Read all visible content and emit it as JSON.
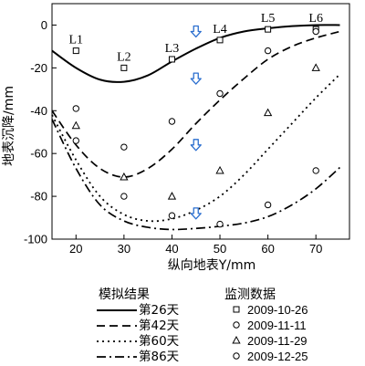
{
  "chart_data": {
    "type": "line",
    "xlabel": "纵向地表Y/mm",
    "ylabel": "地表沉降/mm",
    "xlim": [
      15,
      77
    ],
    "ylim": [
      -100,
      10
    ],
    "xticks": [
      "20",
      "30",
      "40",
      "50",
      "60",
      "70"
    ],
    "yticks": [
      "0",
      "-20",
      "-40",
      "-60",
      "-80",
      "-100"
    ],
    "grid": false,
    "legend_groups": [
      {
        "title": "模拟结果",
        "items": [
          "第26天",
          "第42天",
          "第60天",
          "第86天"
        ]
      },
      {
        "title": "监测数据",
        "items": [
          "2009-10-26",
          "2009-11-11",
          "2009-11-29",
          "2009-12-25"
        ]
      }
    ],
    "stations": [
      {
        "label": "L1",
        "x": 20,
        "y": -12
      },
      {
        "label": "L2",
        "x": 30,
        "y": -20
      },
      {
        "label": "L3",
        "x": 40,
        "y": -16
      },
      {
        "label": "L4",
        "x": 50,
        "y": -7
      },
      {
        "label": "L5",
        "x": 60,
        "y": -2
      },
      {
        "label": "L6",
        "x": 70,
        "y": -2
      }
    ],
    "simulated_series": [
      {
        "name": "第26天",
        "style": "solid",
        "x": [
          15,
          20,
          25,
          30,
          35,
          40,
          45,
          50,
          55,
          60,
          65,
          70,
          75
        ],
        "y": [
          -12,
          -20,
          -25.5,
          -26.5,
          -23.5,
          -17,
          -11,
          -6,
          -3,
          -1.5,
          -0.5,
          0,
          0
        ]
      },
      {
        "name": "第42天",
        "style": "dashed",
        "x": [
          15,
          20,
          25,
          30,
          35,
          40,
          45,
          50,
          55,
          60,
          65,
          70,
          75
        ],
        "y": [
          -40,
          -56,
          -67,
          -71,
          -67,
          -58,
          -46,
          -35,
          -25,
          -16,
          -10,
          -6,
          -3
        ]
      },
      {
        "name": "第60天",
        "style": "dotted",
        "x": [
          15,
          20,
          25,
          30,
          35,
          40,
          45,
          50,
          55,
          60,
          65,
          70,
          75
        ],
        "y": [
          -42,
          -63,
          -80,
          -88.5,
          -91.5,
          -90.5,
          -86.5,
          -80,
          -70,
          -58,
          -46,
          -34,
          -23
        ]
      },
      {
        "name": "第86天",
        "style": "dashdot",
        "x": [
          15,
          20,
          25,
          30,
          35,
          40,
          45,
          50,
          55,
          60,
          65,
          70,
          75
        ],
        "y": [
          -44,
          -67,
          -84,
          -91.5,
          -94.5,
          -95.5,
          -95,
          -94,
          -92.5,
          -89.5,
          -84,
          -76.5,
          -66.5
        ]
      }
    ],
    "measured_series": [
      {
        "name": "2009-10-26",
        "marker": "square",
        "x": [
          20,
          30,
          40,
          50,
          60,
          70
        ],
        "y": [
          -12,
          -20,
          -16,
          -7,
          -2,
          -2
        ]
      },
      {
        "name": "2009-11-11",
        "marker": "circle",
        "x": [
          20,
          30,
          40,
          50,
          60,
          70
        ],
        "y": [
          -39,
          -57,
          -45,
          -32,
          -12,
          -3
        ]
      },
      {
        "name": "2009-11-29",
        "marker": "triangle",
        "x": [
          20,
          30,
          40,
          50,
          60,
          70
        ],
        "y": [
          -47,
          -71,
          -80,
          -68,
          -41,
          -20
        ]
      },
      {
        "name": "2009-12-25",
        "marker": "circle",
        "x": [
          20,
          30,
          40,
          50,
          60,
          70
        ],
        "y": [
          -54,
          -80,
          -89,
          -93,
          -84,
          -68
        ]
      }
    ],
    "arrows": [
      {
        "x": 45,
        "y": -3
      },
      {
        "x": 45,
        "y": -25
      },
      {
        "x": 45,
        "y": -56
      },
      {
        "x": 45,
        "y": -88
      }
    ],
    "colors": {
      "ink": "#000000",
      "arrow_fill": "#ffffff",
      "arrow_stroke": "#2a6ecf"
    }
  }
}
